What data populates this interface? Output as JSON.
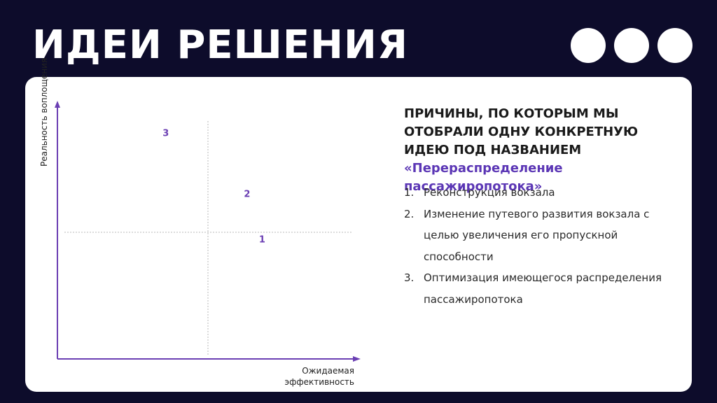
{
  "page": {
    "title": "ИДЕИ РЕШЕНИЯ"
  },
  "chart_data": {
    "type": "scatter",
    "xlabel": "Ожидаемая эффективность",
    "ylabel": "Реальность воплощения",
    "xlim": [
      0,
      10
    ],
    "ylim": [
      0,
      10
    ],
    "quadrant_divider": {
      "x": 5,
      "y": 5
    },
    "points": [
      {
        "label": "3",
        "x": 3.6,
        "y": 8.8
      },
      {
        "label": "2",
        "x": 6.3,
        "y": 6.4
      },
      {
        "label": "1",
        "x": 6.8,
        "y": 4.6
      }
    ],
    "colors": {
      "axis": "#6b3fb3",
      "point": "#6b3fb3",
      "grid": "#b8b8b8"
    }
  },
  "reasons": {
    "heading": "ПРИЧИНЫ, ПО КОТОРЫМ МЫ ОТОБРАЛИ ОДНУ КОНКРЕТНУЮ ИДЕЮ ПОД НАЗВАНИЕМ",
    "highlight": "«Перераспределение пассажиропотока»",
    "items": [
      {
        "num": "1.",
        "text": "Реконструкция вокзала"
      },
      {
        "num": "2.",
        "text": "Изменение путевого развития вокзала с целью увеличения его пропускной способности"
      },
      {
        "num": "3.",
        "text": "Оптимизация имеющегося распределения пассажиропотока"
      }
    ]
  },
  "colors": {
    "background": "#0d0c2b",
    "accent": "#5b36b5",
    "card": "#ffffff"
  }
}
